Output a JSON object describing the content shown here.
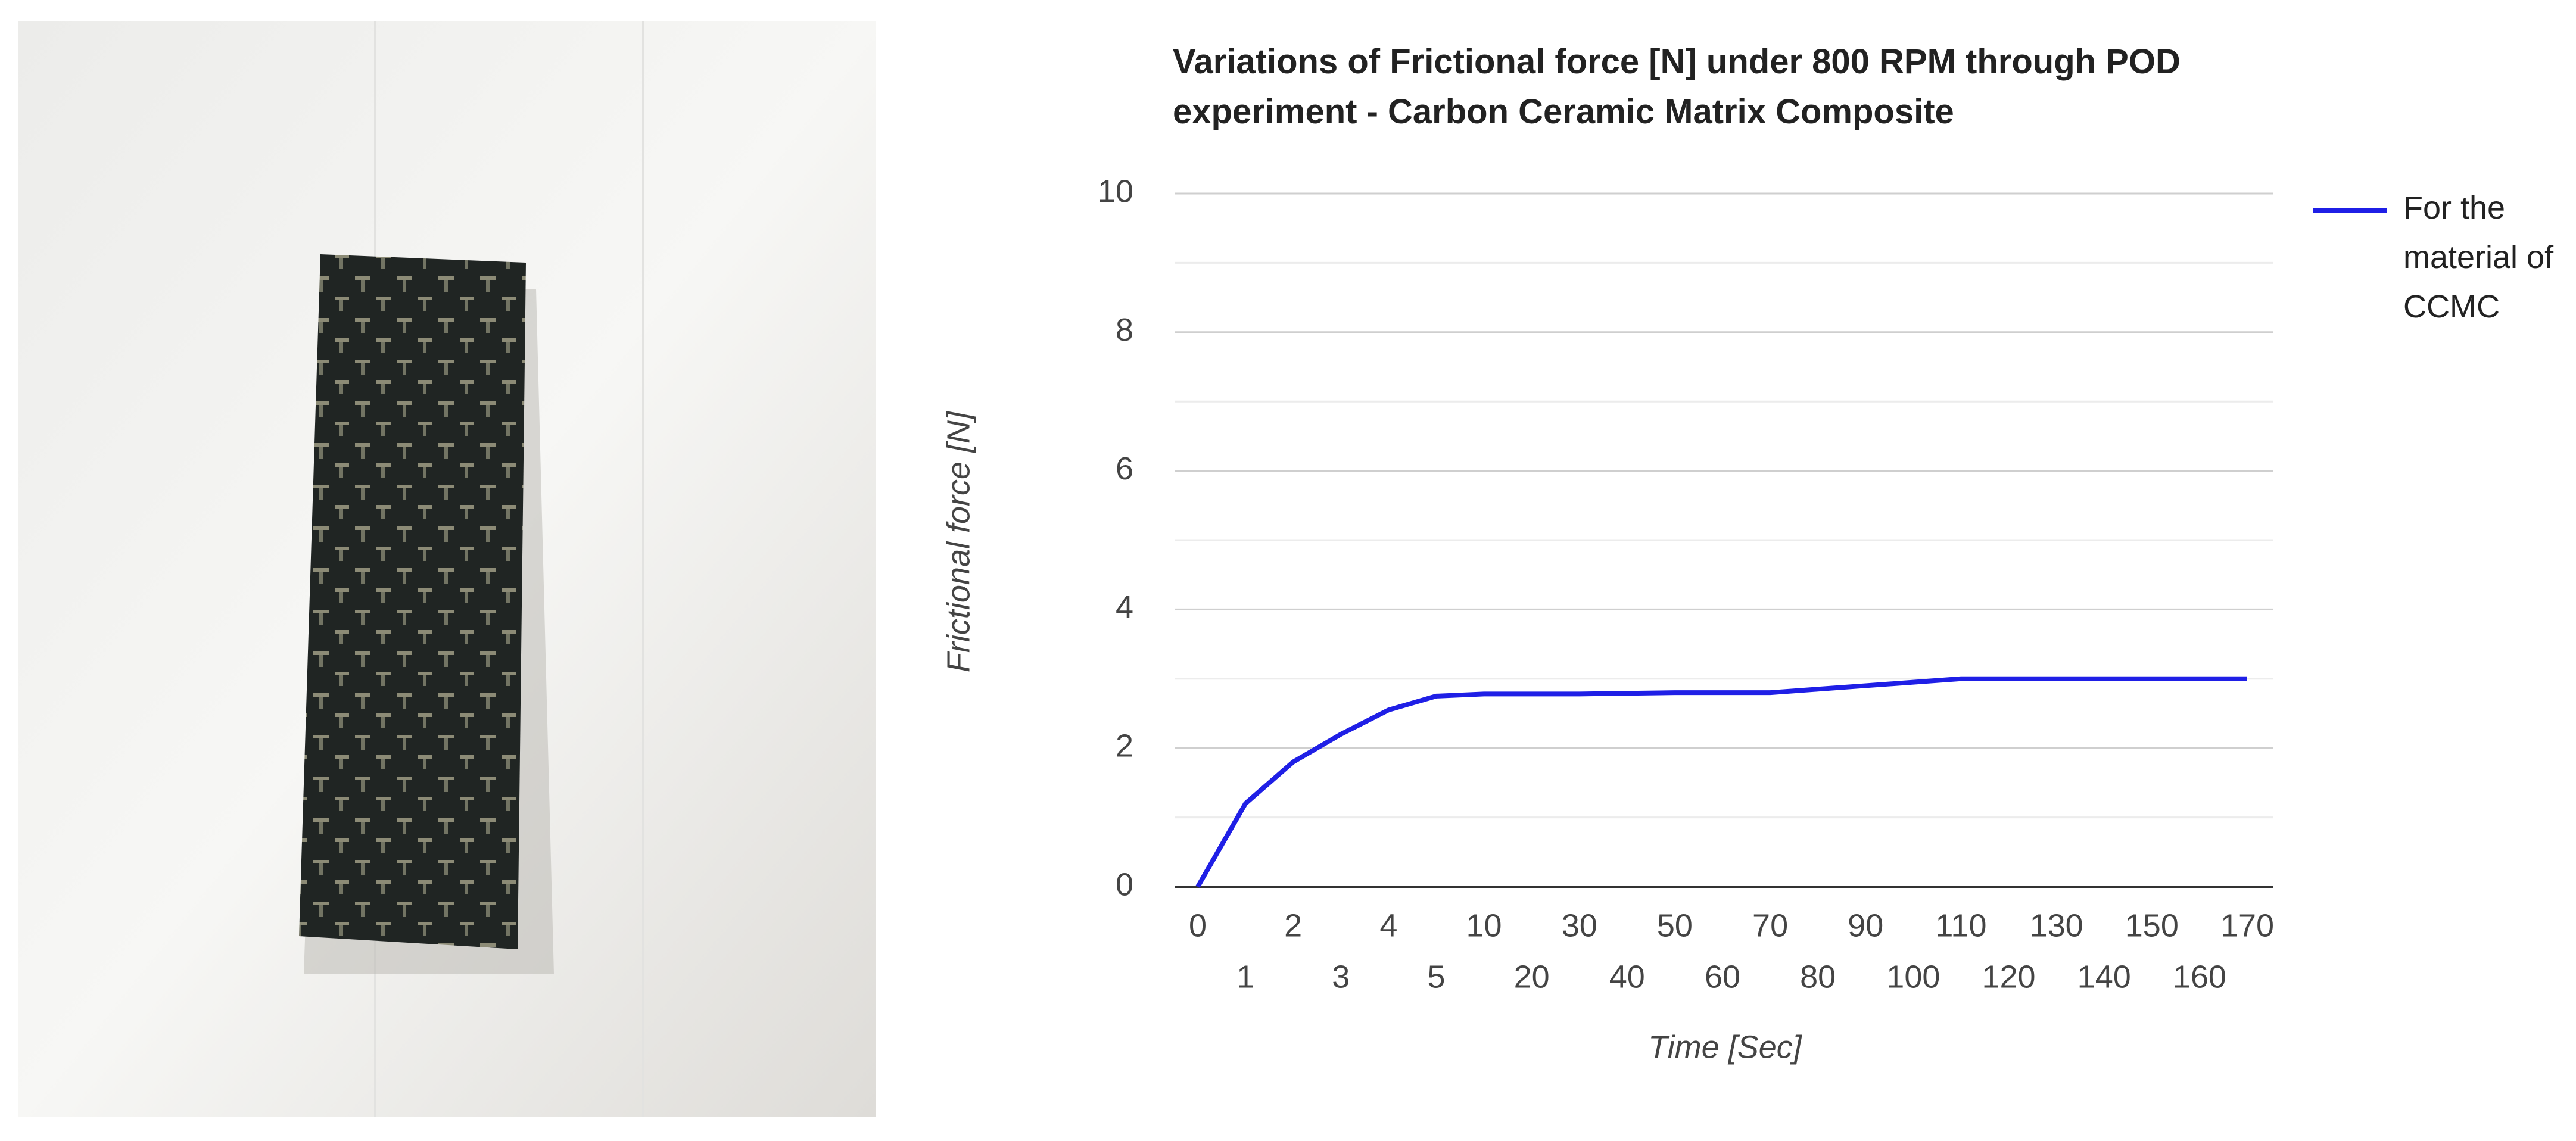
{
  "chart_data": {
    "type": "line",
    "title": "Variations of Frictional force [N] under 800 RPM through POD experiment - Carbon Ceramic Matrix Composite",
    "x_label": "Time [Sec]",
    "y_label": "Frictional force [N]",
    "categories": [
      "0",
      "1",
      "2",
      "3",
      "4",
      "5",
      "10",
      "20",
      "30",
      "40",
      "50",
      "60",
      "70",
      "80",
      "90",
      "100",
      "110",
      "120",
      "130",
      "140",
      "150",
      "160",
      "170"
    ],
    "series": [
      {
        "name": "For the material of CCMC",
        "color": "#1f1fe6",
        "values": [
          0,
          1.2,
          1.8,
          2.2,
          2.55,
          2.75,
          2.78,
          2.78,
          2.78,
          2.79,
          2.8,
          2.8,
          2.8,
          2.85,
          2.9,
          2.95,
          3.0,
          3.0,
          3.0,
          3.0,
          3.0,
          3.0,
          3.0
        ]
      }
    ],
    "ylim": [
      0,
      10
    ],
    "yticks": [
      0,
      2,
      4,
      6,
      8,
      10
    ],
    "minor_yticks": [
      1,
      3,
      5,
      7,
      9
    ],
    "grid": true,
    "legend": "right"
  }
}
